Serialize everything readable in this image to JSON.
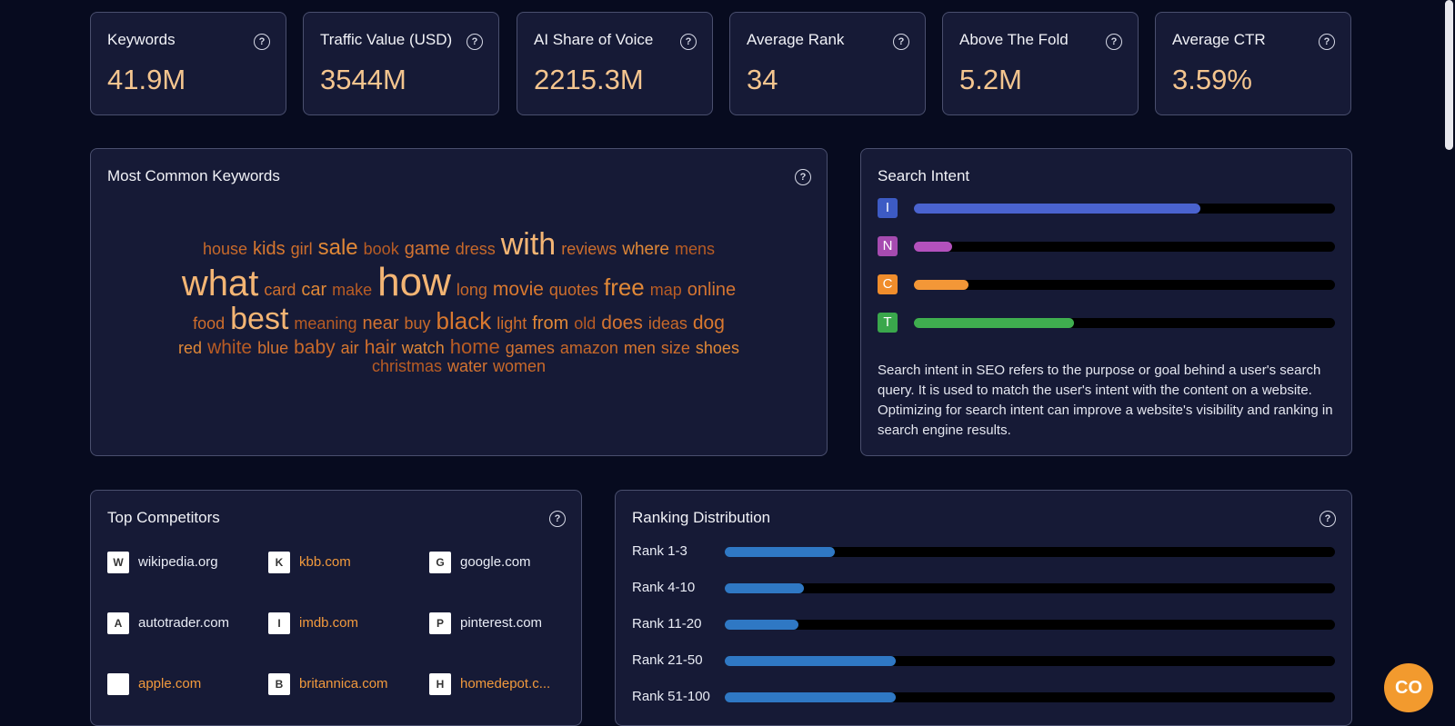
{
  "metrics": [
    {
      "label": "Keywords",
      "value": "41.9M"
    },
    {
      "label": "Traffic Value (USD)",
      "value": "3544M"
    },
    {
      "label": "AI Share of Voice",
      "value": "2215.3M"
    },
    {
      "label": "Average Rank",
      "value": "34"
    },
    {
      "label": "Above The Fold",
      "value": "5.2M"
    },
    {
      "label": "Average CTR",
      "value": "3.59%"
    }
  ],
  "keywords_card": {
    "title": "Most Common Keywords",
    "rows": [
      [
        "house",
        "kids",
        "girl",
        "sale",
        "book",
        "game",
        "dress",
        "with",
        "reviews",
        "where",
        "mens"
      ],
      [
        "what",
        "card",
        "car",
        "make",
        "how",
        "long",
        "movie",
        "quotes",
        "free",
        "map",
        "online"
      ],
      [
        "food",
        "best",
        "meaning",
        "near",
        "buy",
        "black",
        "light",
        "from",
        "old",
        "does",
        "ideas",
        "dog"
      ],
      [
        "red",
        "white",
        "blue",
        "baby",
        "air",
        "hair",
        "watch",
        "home",
        "games",
        "amazon",
        "men",
        "size",
        "shoes"
      ],
      [
        "christmas",
        "water",
        "women"
      ]
    ]
  },
  "intent": {
    "title": "Search Intent",
    "items": [
      {
        "letter": "I",
        "color": "#3d5bc4",
        "bar": "#4a63cf",
        "fraction": 0.68
      },
      {
        "letter": "N",
        "color": "#a64bb0",
        "bar": "#b351bd",
        "fraction": 0.09
      },
      {
        "letter": "C",
        "color": "#f08d2c",
        "bar": "#f39737",
        "fraction": 0.13
      },
      {
        "letter": "T",
        "color": "#3aa74c",
        "bar": "#3fae4f",
        "fraction": 0.38
      }
    ],
    "description": "Search intent in SEO refers to the purpose or goal behind a user's search query. It is used to match the user's intent with the content on a website. Optimizing for search intent can improve a website's visibility and ranking in search engine results."
  },
  "competitors": {
    "title": "Top Competitors",
    "items": [
      {
        "name": "wikipedia.org",
        "logo": "W",
        "color": "#e9ecf5"
      },
      {
        "name": "kbb.com",
        "logo": "K",
        "color": "#f29a3d"
      },
      {
        "name": "google.com",
        "logo": "G",
        "color": "#e9ecf5"
      },
      {
        "name": "autotrader.com",
        "logo": "A",
        "color": "#e9ecf5"
      },
      {
        "name": "imdb.com",
        "logo": "I",
        "color": "#f29a3d"
      },
      {
        "name": "pinterest.com",
        "logo": "P",
        "color": "#e9ecf5"
      },
      {
        "name": "apple.com",
        "logo": "",
        "color": "#f29a3d"
      },
      {
        "name": "britannica.com",
        "logo": "B",
        "color": "#f29a3d"
      },
      {
        "name": "homedepot.c...",
        "logo": "H",
        "color": "#f29a3d"
      }
    ]
  },
  "ranking": {
    "title": "Ranking Distribution",
    "items": [
      {
        "label": "Rank 1-3",
        "fraction": 0.18
      },
      {
        "label": "Rank 4-10",
        "fraction": 0.13
      },
      {
        "label": "Rank 11-20",
        "fraction": 0.12
      },
      {
        "label": "Rank 21-50",
        "fraction": 0.28
      },
      {
        "label": "Rank 51-100",
        "fraction": 0.28
      }
    ]
  },
  "fab": {
    "label": "CO"
  },
  "help_glyph": "?"
}
